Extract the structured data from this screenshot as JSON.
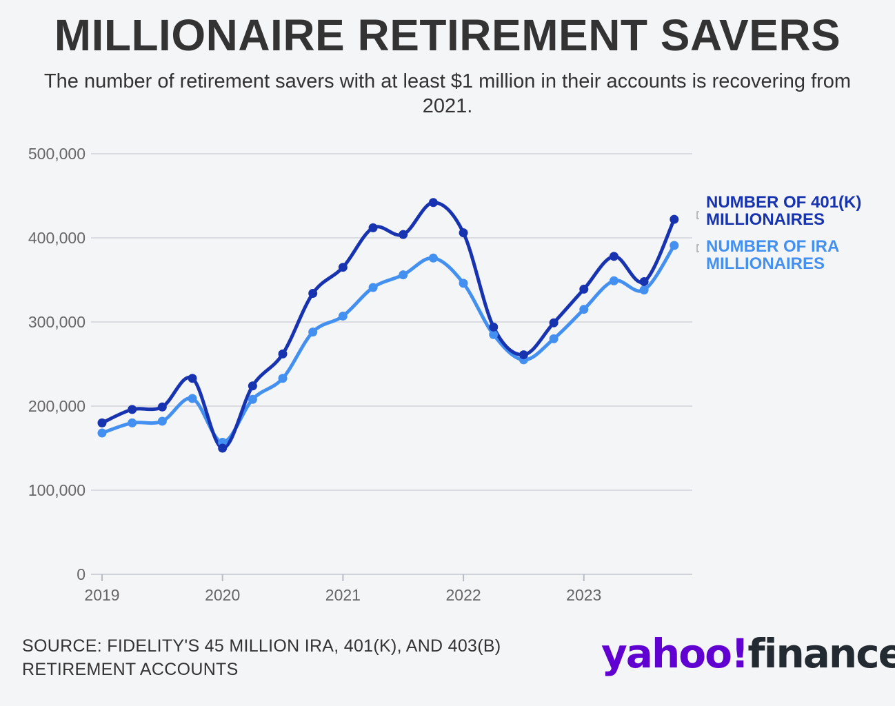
{
  "header": {
    "title": "MILLIONAIRE RETIREMENT SAVERS",
    "subtitle": "The number of retirement savers with at least $1 million in their accounts is recovering from 2021."
  },
  "colors": {
    "series_401k": "#1833b0",
    "series_ira": "#4490f0",
    "grid": "#d9dbe0",
    "axis_text": "#666666",
    "yahoo_purple": "#6001d2"
  },
  "chart_data": {
    "type": "line",
    "title": "MILLIONAIRE RETIREMENT SAVERS",
    "ylim": [
      0,
      500000
    ],
    "yticks": [
      0,
      100000,
      200000,
      300000,
      400000,
      500000
    ],
    "ytick_labels": [
      "0",
      "100,000",
      "200,000",
      "300,000",
      "400,000",
      "500,000"
    ],
    "xlim": [
      2019,
      2023.86
    ],
    "xticks": [
      2019,
      2020,
      2021,
      2022,
      2023
    ],
    "xtick_labels": [
      "2019",
      "2020",
      "2021",
      "2022",
      "2023"
    ],
    "x": [
      2019.0,
      2019.25,
      2019.5,
      2019.75,
      2020.0,
      2020.25,
      2020.5,
      2020.75,
      2021.0,
      2021.25,
      2021.5,
      2021.75,
      2022.0,
      2022.25,
      2022.5,
      2022.75,
      2023.0,
      2023.25,
      2023.5,
      2023.75
    ],
    "grid": true,
    "legend": "right",
    "series": [
      {
        "name": "NUMBER OF 401(K) MILLIONAIRES",
        "name_lines": [
          "NUMBER OF 401(K)",
          "MILLIONAIRES"
        ],
        "values": [
          180000,
          196000,
          199000,
          233000,
          150000,
          224000,
          262000,
          334000,
          365000,
          412000,
          404000,
          442000,
          406000,
          294000,
          261000,
          299000,
          339000,
          378000,
          348000,
          422000
        ]
      },
      {
        "name": "NUMBER OF IRA MILLIONAIRES",
        "name_lines": [
          "NUMBER OF IRA",
          "MILLIONAIRES"
        ],
        "values": [
          168000,
          180000,
          182000,
          209000,
          157000,
          208000,
          233000,
          288000,
          307000,
          341000,
          356000,
          376000,
          346000,
          285000,
          255000,
          280000,
          315000,
          349000,
          338000,
          391000
        ]
      }
    ]
  },
  "footer": {
    "source_line1": "SOURCE: FIDELITY'S 45 MILLION IRA, 401(K), AND 403(B)",
    "source_line2": "RETIREMENT ACCOUNTS",
    "logo_yahoo": "yahoo",
    "logo_bang": "!",
    "logo_finance": "finance"
  }
}
